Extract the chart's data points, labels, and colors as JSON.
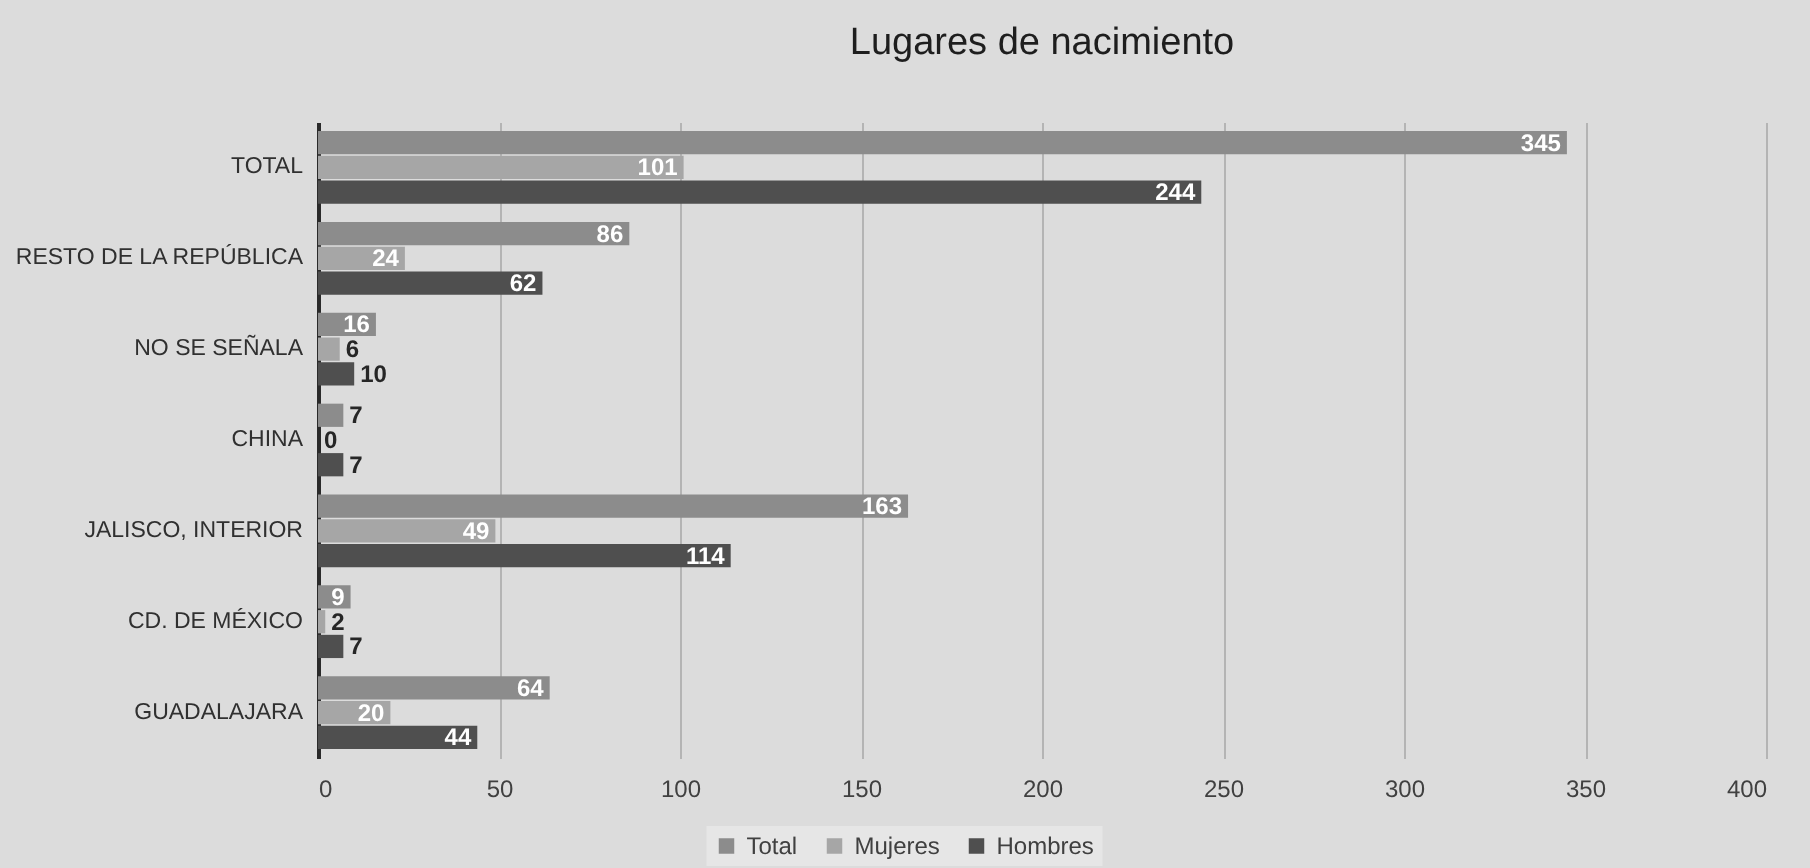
{
  "chart_data": {
    "type": "bar",
    "orientation": "horizontal",
    "title": "Lugares de nacimiento",
    "categories": [
      "TOTAL",
      "RESTO DE LA REPÚBLICA",
      "NO SE SEÑALA",
      "CHINA",
      "JALISCO, INTERIOR",
      "CD. DE MÉXICO",
      "GUADALAJARA"
    ],
    "series": [
      {
        "name": "Total",
        "color": "#8c8c8c",
        "values": [
          345,
          86,
          16,
          7,
          163,
          9,
          64
        ]
      },
      {
        "name": "Mujeres",
        "color": "#a6a6a6",
        "values": [
          101,
          24,
          6,
          0,
          49,
          2,
          20
        ]
      },
      {
        "name": "Hombres",
        "color": "#4f4f4f",
        "values": [
          244,
          62,
          10,
          7,
          114,
          7,
          44
        ]
      }
    ],
    "xlim": [
      0,
      400
    ],
    "xticks": [
      0,
      50,
      100,
      150,
      200,
      250,
      300,
      350,
      400
    ],
    "grid": "x",
    "legend": "bottom",
    "data_labels": true
  }
}
